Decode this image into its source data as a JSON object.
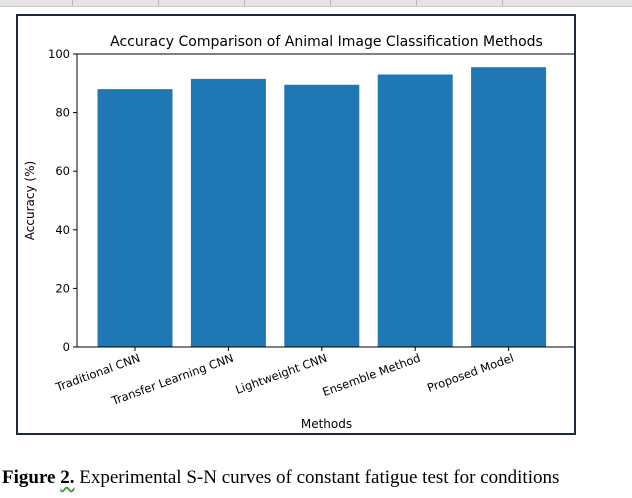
{
  "chart_data": {
    "type": "bar",
    "title": "Accuracy Comparison of Animal Image Classification Methods",
    "xlabel": "Methods",
    "ylabel": "Accuracy (%)",
    "categories": [
      "Traditional CNN",
      "Transfer Learning CNN",
      "Lightweight CNN",
      "Ensemble Method",
      "Proposed Model"
    ],
    "values": [
      88,
      91.5,
      89.5,
      93,
      95.5
    ],
    "ylim": [
      0,
      100
    ],
    "yticks": [
      "0",
      "20",
      "40",
      "60",
      "80",
      "100"
    ],
    "grid": false,
    "bar_color": "#1f77b4"
  },
  "caption": {
    "label": "Figure",
    "number": "2.",
    "text": " Experimental S-N curves of constant fatigue test for conditions"
  }
}
